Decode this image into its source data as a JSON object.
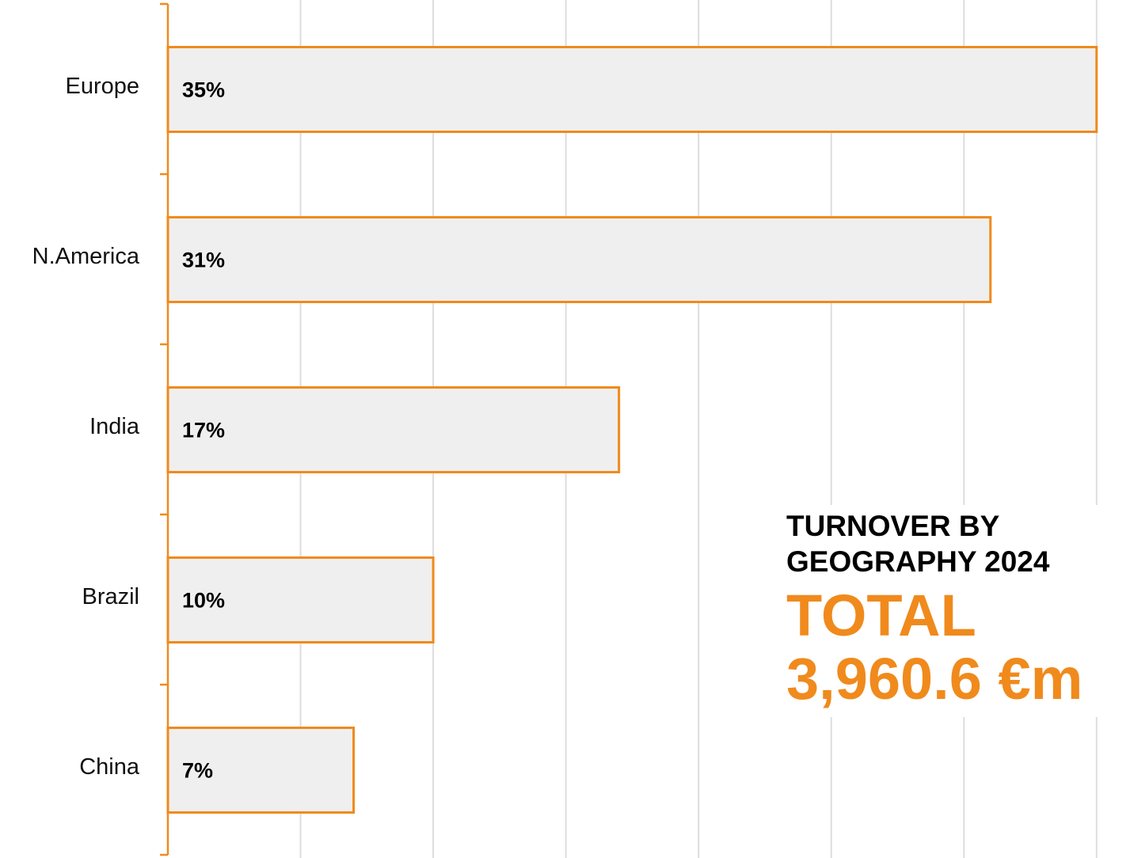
{
  "chart_data": {
    "type": "bar",
    "orientation": "horizontal",
    "title": "TURNOVER BY GEOGRAPHY 2024",
    "subtitle": "TOTAL 3,960.6 €m",
    "categories": [
      "Europe",
      "N.America",
      "India",
      "Brazil",
      "China"
    ],
    "values": [
      35,
      31,
      17,
      10,
      7
    ],
    "value_labels": [
      "35%",
      "31%",
      "17%",
      "10%",
      "7%"
    ],
    "color": "#f08a1c",
    "xlim": [
      0,
      36.2
    ],
    "xticks": [
      0,
      5,
      10,
      15,
      20,
      25,
      30,
      35
    ],
    "grid": true
  }
}
